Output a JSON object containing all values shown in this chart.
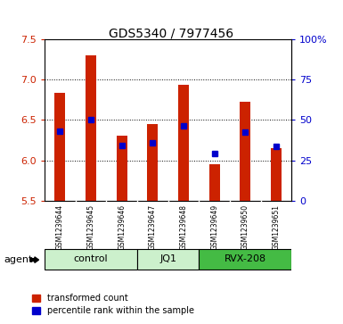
{
  "title": "GDS5340 / 7977456",
  "samples": [
    "GSM1239644",
    "GSM1239645",
    "GSM1239646",
    "GSM1239647",
    "GSM1239648",
    "GSM1239649",
    "GSM1239650",
    "GSM1239651"
  ],
  "red_values": [
    6.83,
    7.3,
    6.3,
    6.45,
    6.93,
    5.95,
    6.72,
    6.15
  ],
  "blue_values": [
    6.36,
    6.5,
    6.18,
    6.22,
    6.43,
    6.08,
    6.35,
    6.17
  ],
  "y_min": 5.5,
  "y_max": 7.5,
  "y_ticks": [
    5.5,
    6.0,
    6.5,
    7.0,
    7.5
  ],
  "y2_ticks": [
    0,
    25,
    50,
    75,
    100
  ],
  "y2_labels": [
    "0",
    "25",
    "50",
    "75",
    "100%"
  ],
  "red_color": "#cc2200",
  "blue_color": "#0000cc",
  "bar_width": 0.35,
  "bar_bottom": 5.5,
  "bg_color": "#d4d4d4",
  "plot_bg": "#ffffff",
  "legend_red": "transformed count",
  "legend_blue": "percentile rank within the sample",
  "agent_label": "agent",
  "group_boundaries": [
    {
      "label": "control",
      "indices": [
        0,
        1,
        2
      ],
      "color": "#ccf0cc"
    },
    {
      "label": "JQ1",
      "indices": [
        3,
        4
      ],
      "color": "#ccf0cc"
    },
    {
      "label": "RVX-208",
      "indices": [
        5,
        6,
        7
      ],
      "color": "#44bb44"
    }
  ]
}
